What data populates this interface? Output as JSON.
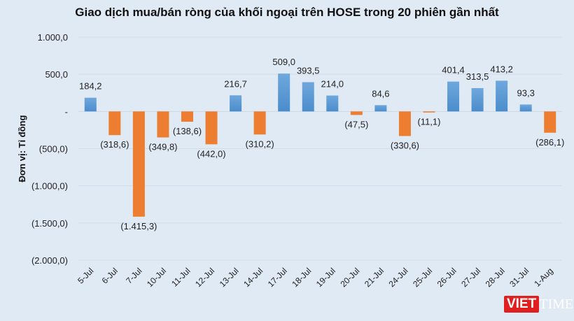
{
  "chart_data": {
    "type": "bar",
    "title": "Giao dịch mua/bán ròng của khối ngoại trên HOSE trong 20 phiên gần nhất",
    "ylabel": "Đơn vị: Tỉ đồng",
    "xlabel": "",
    "categories": [
      "5-Jul",
      "6-Jul",
      "7-Jul",
      "10-Jul",
      "11-Jul",
      "12-Jul",
      "13-Jul",
      "14-Jul",
      "17-Jul",
      "18-Jul",
      "19-Jul",
      "20-Jul",
      "21-Jul",
      "24-Jul",
      "25-Jul",
      "26-Jul",
      "27-Jul",
      "28-Jul",
      "31-Jul",
      "1-Aug"
    ],
    "values": [
      184.2,
      -318.6,
      -1415.3,
      -349.8,
      -138.6,
      -442.0,
      216.7,
      -310.2,
      509.0,
      393.5,
      214.0,
      -47.5,
      84.6,
      -330.6,
      -11.1,
      401.4,
      313.5,
      413.2,
      93.3,
      -286.1
    ],
    "data_labels": [
      "184,2",
      "(318,6)",
      "(1.415,3)",
      "(349,8)",
      "(138,6)",
      "(442,0)",
      "216,7",
      "(310,2)",
      "509,0",
      "393,5",
      "214,0",
      "(47,5)",
      "84,6",
      "(330,6)",
      "(11,1)",
      "401,4",
      "313,5",
      "413,2",
      "93,3",
      "(286,1)"
    ],
    "ylim": [
      -2000,
      1000
    ],
    "yticks": [
      1000,
      500,
      0,
      -500,
      -1000,
      -1500,
      -2000
    ],
    "ytick_labels": [
      "1.000,0",
      "500,0",
      "-",
      "(500,0)",
      "(1.000,0)",
      "(1.500,0)",
      "(2.000,0)"
    ],
    "grid": true,
    "colors": {
      "positive": "#5b9bd5",
      "negative": "#ed7d31",
      "background": "#dfeaf5"
    }
  },
  "logo": {
    "text1": "VIET",
    "text2": "TIMES"
  }
}
